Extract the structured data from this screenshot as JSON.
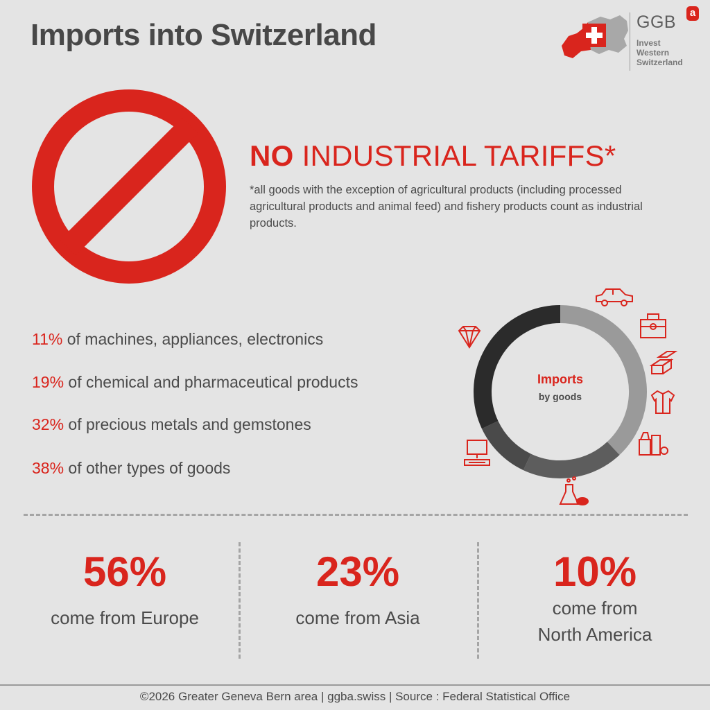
{
  "title": "Imports into Switzerland",
  "logo": {
    "name": "GGB",
    "superscript": "a",
    "tagline": [
      "Invest",
      "Western",
      "Switzerland"
    ]
  },
  "tariff": {
    "headline_bold": "NO",
    "headline_rest": " INDUSTRIAL TARIFFS*",
    "note": "*all goods with the exception of agricultural products (including processed agricultural products and animal feed) and fishery products count as industrial products."
  },
  "goods": [
    {
      "pct": "11%",
      "text": " of machines, appliances, electronics"
    },
    {
      "pct": "19%",
      "text": " of chemical and pharmaceutical products"
    },
    {
      "pct": "32%",
      "text": " of precious metals and gemstones"
    },
    {
      "pct": "38%",
      "text": " of other types of goods"
    }
  ],
  "donut": {
    "title": "Imports",
    "subtitle": "by goods",
    "icons": [
      "car-icon",
      "toolbox-icon",
      "metal-bars-icon",
      "clothing-icon",
      "groceries-icon",
      "chemistry-flask-icon",
      "computer-icon",
      "diamond-icon"
    ]
  },
  "chart_data": {
    "type": "pie",
    "categories": [
      "other types of goods",
      "chemical and pharmaceutical products",
      "machines, appliances, electronics",
      "precious metals and gemstones"
    ],
    "values": [
      38,
      19,
      11,
      32
    ],
    "colors": [
      "#9a9a9a",
      "#5d5d5d",
      "#4a4a4a",
      "#2b2b2b"
    ],
    "donut": true
  },
  "regions": [
    {
      "pct": "56%",
      "label_lines": [
        "come from Europe"
      ]
    },
    {
      "pct": "23%",
      "label_lines": [
        "come from Asia"
      ]
    },
    {
      "pct": "10%",
      "label_lines": [
        "come from",
        "North America"
      ]
    }
  ],
  "footer": "©2026 Greater Geneva Bern area | ggba.swiss | Source : Federal Statistical Office",
  "colors": {
    "accent": "#d9251d",
    "background": "#e4e4e4",
    "text": "#4a4a4a"
  }
}
